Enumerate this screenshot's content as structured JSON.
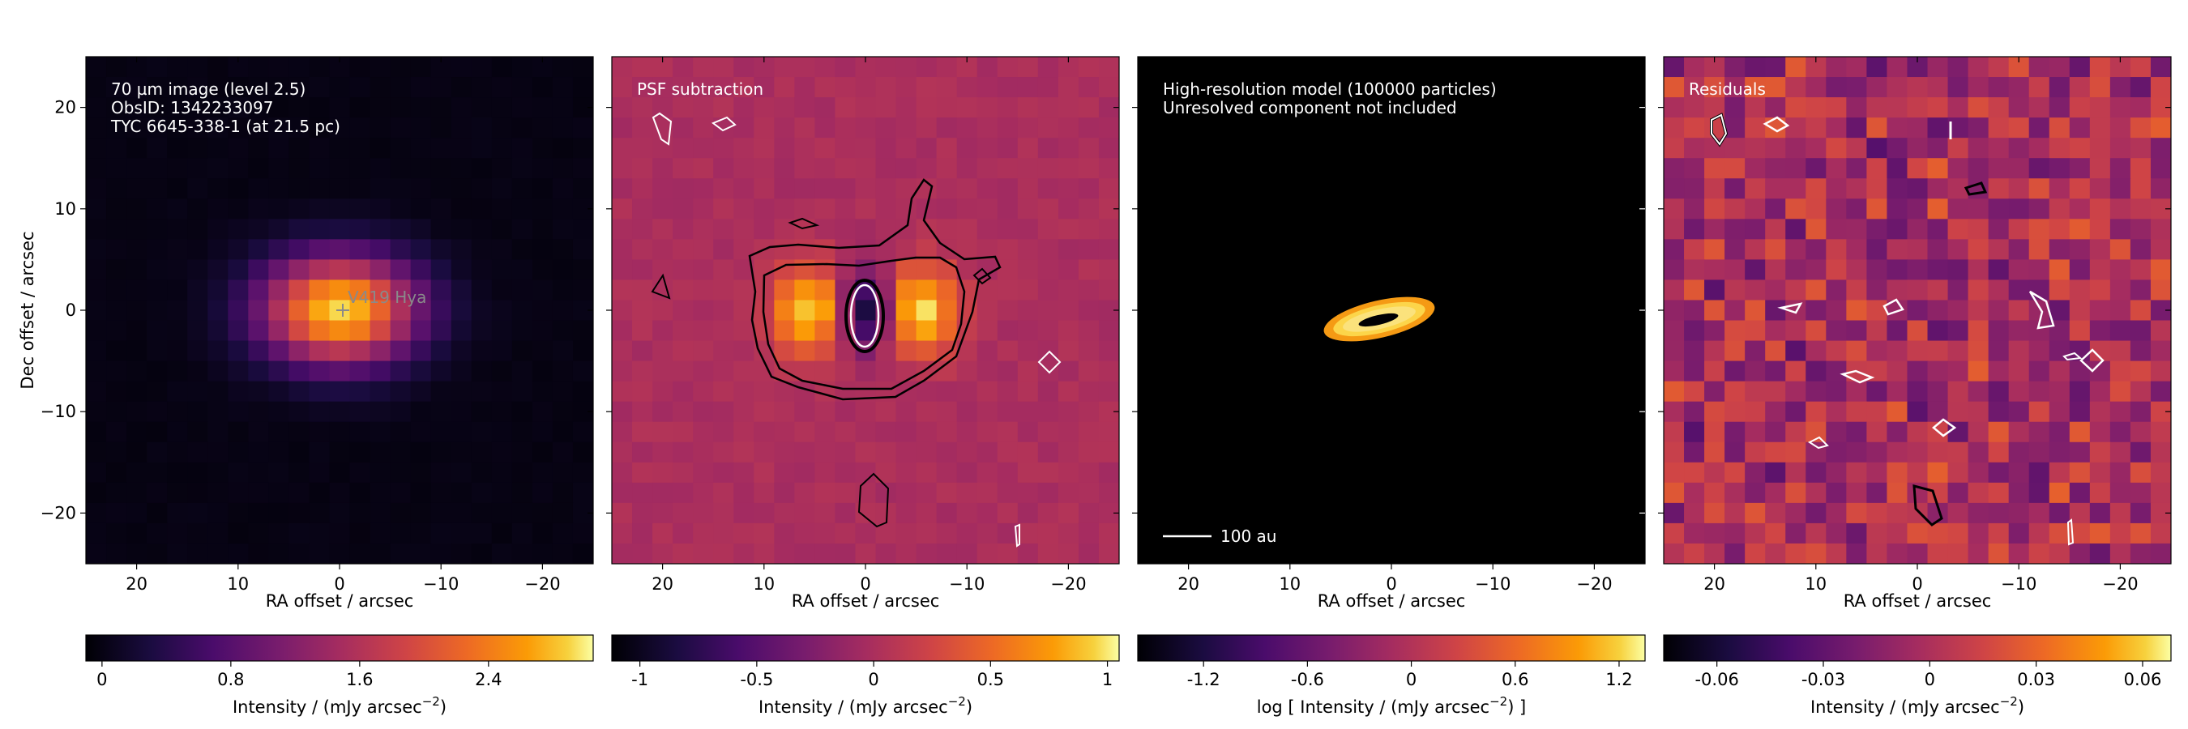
{
  "chart_data": [
    {
      "type": "heatmap",
      "panel": "observed-image",
      "annotations": [
        "70 µm image (level 2.5)",
        "ObsID: 1342233097",
        "TYC 6645-338-1 (at 21.5 pc)"
      ],
      "marker_label": "V419 Hya",
      "marker_position": [
        0,
        0
      ],
      "xlabel": "RA offset / arcsec",
      "ylabel": "Dec offset / arcsec",
      "xlim": [
        25,
        -25
      ],
      "ylim": [
        -25,
        25
      ],
      "xticks": [
        20,
        10,
        0,
        -10,
        -20
      ],
      "yticks": [
        -20,
        -10,
        0,
        10,
        20
      ],
      "colormap": "inferno",
      "peak": 2.9,
      "colorbar": {
        "label": "Intensity / (mJy arcsec⁻²)",
        "ticks": [
          0,
          0.8,
          1.6,
          2.4
        ],
        "tick_labels": [
          "0",
          "0.8",
          "1.6",
          "2.4"
        ],
        "range": [
          -0.1,
          3.05
        ]
      }
    },
    {
      "type": "heatmap",
      "panel": "psf-subtraction",
      "annotations": [
        "PSF subtraction"
      ],
      "xlabel": "RA offset / arcsec",
      "xlim": [
        25,
        -25
      ],
      "ylim": [
        -25,
        25
      ],
      "xticks": [
        20,
        10,
        0,
        -10,
        -20
      ],
      "colormap": "inferno",
      "colorbar": {
        "label": "Intensity / (mJy arcsec⁻²)",
        "ticks": [
          -1,
          -0.5,
          0,
          0.5,
          1
        ],
        "tick_labels": [
          "-1",
          "-0.5",
          "0",
          "0.5",
          "1"
        ],
        "range": [
          -1.12,
          1.05
        ]
      }
    },
    {
      "type": "heatmap",
      "panel": "model",
      "annotations": [
        "High-resolution model (100000 particles)",
        "Unresolved component not included"
      ],
      "scale_bar": "100 au",
      "xlabel": "RA offset / arcsec",
      "xlim": [
        25,
        -25
      ],
      "ylim": [
        -25,
        25
      ],
      "xticks": [
        20,
        10,
        0,
        -10,
        -20
      ],
      "colormap": "inferno",
      "colorbar": {
        "label": "log [ Intensity / (mJy arcsec⁻²) ]",
        "ticks": [
          -1.2,
          -0.6,
          0,
          0.6,
          1.2
        ],
        "tick_labels": [
          "-1.2",
          "-0.6",
          "0",
          "0.6",
          "1.2"
        ],
        "range": [
          -1.58,
          1.35
        ]
      }
    },
    {
      "type": "heatmap",
      "panel": "residuals",
      "annotations": [
        "Residuals"
      ],
      "xlabel": "RA offset / arcsec",
      "xlim": [
        25,
        -25
      ],
      "ylim": [
        -25,
        25
      ],
      "xticks": [
        20,
        10,
        0,
        -10,
        -20
      ],
      "colormap": "inferno",
      "colorbar": {
        "label": "Intensity / (mJy arcsec⁻²)",
        "ticks": [
          -0.06,
          -0.03,
          0,
          0.03,
          0.06
        ],
        "tick_labels": [
          "-0.06",
          "-0.03",
          "0",
          "0.03",
          "0.06"
        ],
        "range": [
          -0.075,
          0.068
        ]
      }
    }
  ],
  "text": {
    "p1": [
      "70 µm image (level 2.5)",
      "ObsID: 1342233097",
      "TYC 6645-338-1 (at 21.5 pc)"
    ],
    "p1_marker": "V419 Hya",
    "p2": "PSF subtraction",
    "p3": [
      "High-resolution model (100000 particles)",
      "Unresolved component not included"
    ],
    "p3_scale": "100 au",
    "p4": "Residuals",
    "xlabel": "RA offset / arcsec",
    "ylabel": "Dec offset / arcsec",
    "cb1": "Intensity / (mJy arcsec",
    "cb2": "Intensity / (mJy arcsec",
    "cb3": "log [ Intensity / (mJy arcsec",
    "cb3_tail": ") ]",
    "cb_sup": "−2",
    "cb_tail": ")"
  }
}
